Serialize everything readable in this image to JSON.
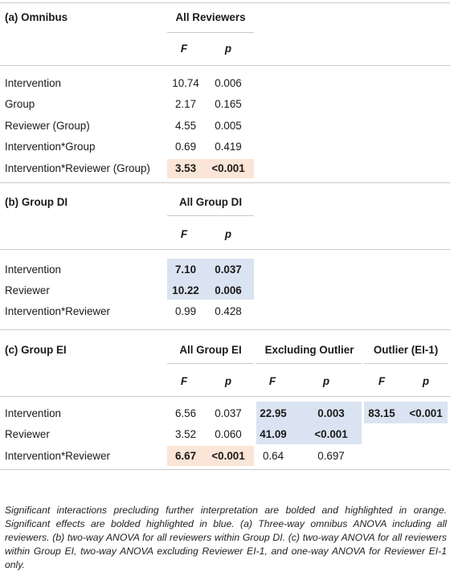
{
  "colors": {
    "orange_highlight": "#fbe5d6",
    "blue_highlight": "#dae3f1",
    "rule": "#c9c9c9"
  },
  "sections": {
    "omnibus": {
      "title": "(a) Omnibus",
      "group_header": "All Reviewers",
      "col_f": "F",
      "col_p": "p",
      "rows": [
        {
          "label": "Intervention",
          "f": "10.74",
          "p": "0.006"
        },
        {
          "label": "Group",
          "f": "2.17",
          "p": "0.165"
        },
        {
          "label": "Reviewer (Group)",
          "f": "4.55",
          "p": "0.005"
        },
        {
          "label": "Intervention*Group",
          "f": "0.69",
          "p": "0.419"
        },
        {
          "label": "Intervention*Reviewer (Group)",
          "f": "3.53",
          "p": "<0.001"
        }
      ]
    },
    "group_di": {
      "title": "(b) Group DI",
      "group_header": "All Group DI",
      "col_f": "F",
      "col_p": "p",
      "rows": [
        {
          "label": "Intervention",
          "f": "7.10",
          "p": "0.037"
        },
        {
          "label": "Reviewer",
          "f": "10.22",
          "p": "0.006"
        },
        {
          "label": "Intervention*Reviewer",
          "f": "0.99",
          "p": "0.428"
        }
      ]
    },
    "group_ei": {
      "title": "(c) Group EI",
      "headers": [
        "All Group EI",
        "Excluding Outlier",
        "Outlier (EI-1)"
      ],
      "col_f": "F",
      "col_p": "p",
      "rows": [
        {
          "label": "Intervention",
          "all_f": "6.56",
          "all_p": "0.037",
          "ex_f": "22.95",
          "ex_p": "0.003",
          "out_f": "83.15",
          "out_p": "<0.001"
        },
        {
          "label": "Reviewer",
          "all_f": "3.52",
          "all_p": "0.060",
          "ex_f": "41.09",
          "ex_p": "<0.001"
        },
        {
          "label": "Intervention*Reviewer",
          "all_f": "6.67",
          "all_p": "<0.001",
          "ex_f": "0.64",
          "ex_p": "0.697"
        }
      ]
    }
  },
  "caption": "Significant interactions precluding further interpretation are bolded and highlighted in orange. Significant effects are bolded highlighted in blue. (a) Three-way omnibus ANOVA including all reviewers. (b) two-way ANOVA for all reviewers within Group DI. (c) two-way ANOVA for all reviewers within Group EI, two-way ANOVA excluding Reviewer EI-1, and one-way ANOVA for Reviewer EI-1 only."
}
